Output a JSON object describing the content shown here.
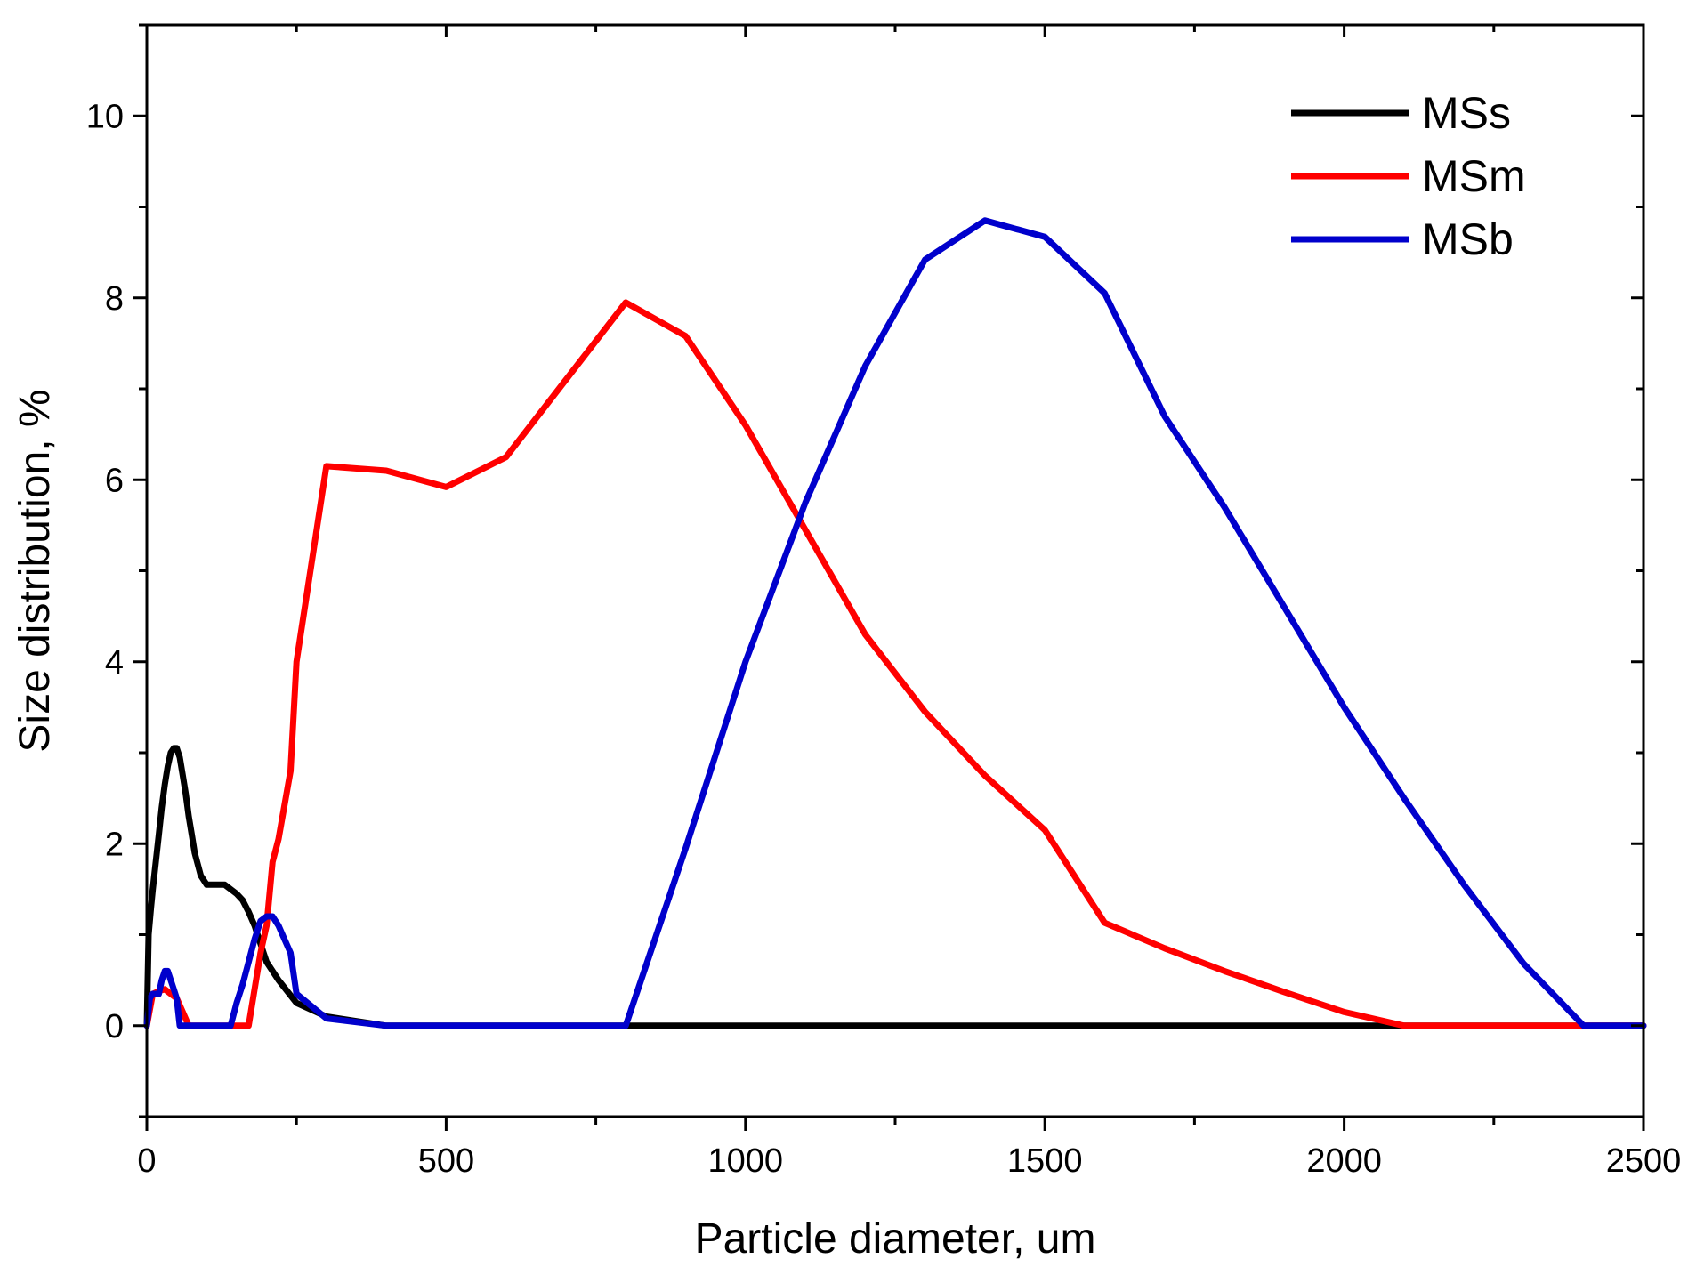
{
  "chart_data": {
    "type": "line",
    "title": "",
    "xlabel": "Particle diameter, um",
    "ylabel": "Size distribution, %",
    "xlim": [
      0,
      2500
    ],
    "ylim": [
      -1,
      11
    ],
    "xticks": [
      0,
      500,
      1000,
      1500,
      2000,
      2500
    ],
    "xtick_labels": [
      "0",
      "500",
      "1000",
      "1500",
      "2000",
      "2500"
    ],
    "yticks": [
      0,
      2,
      4,
      6,
      8,
      10
    ],
    "ytick_labels": [
      "0",
      "2",
      "4",
      "6",
      "8",
      "10"
    ],
    "grid": false,
    "legend_position": "top-right",
    "series": [
      {
        "name": "MSs",
        "color": "#000000",
        "x": [
          0,
          3,
          7,
          10,
          15,
          20,
          25,
          30,
          35,
          40,
          45,
          50,
          55,
          60,
          65,
          70,
          75,
          80,
          90,
          100,
          110,
          120,
          130,
          140,
          150,
          160,
          170,
          180,
          190,
          200,
          220,
          250,
          300,
          400,
          500,
          600,
          700,
          800,
          1000,
          1500,
          2000,
          2500
        ],
        "y": [
          0,
          1.0,
          1.3,
          1.5,
          1.8,
          2.1,
          2.4,
          2.65,
          2.85,
          3.0,
          3.05,
          3.05,
          2.95,
          2.75,
          2.55,
          2.3,
          2.1,
          1.9,
          1.65,
          1.55,
          1.55,
          1.55,
          1.55,
          1.5,
          1.45,
          1.38,
          1.25,
          1.1,
          0.9,
          0.7,
          0.5,
          0.25,
          0.1,
          0.0,
          0,
          0,
          0,
          0,
          0,
          0,
          0,
          0
        ]
      },
      {
        "name": "MSm",
        "color": "#ff0000",
        "x": [
          0,
          10,
          20,
          30,
          40,
          50,
          60,
          70,
          100,
          150,
          170,
          180,
          190,
          200,
          210,
          220,
          240,
          250,
          300,
          400,
          500,
          600,
          700,
          800,
          900,
          1000,
          1100,
          1200,
          1300,
          1400,
          1500,
          1600,
          1700,
          1800,
          1900,
          2000,
          2100,
          2200,
          2300,
          2400,
          2500
        ],
        "y": [
          0,
          0.35,
          0.38,
          0.4,
          0.35,
          0.3,
          0.15,
          0,
          0,
          0,
          0,
          0.4,
          0.8,
          1.1,
          1.8,
          2.05,
          2.8,
          4.0,
          6.15,
          6.1,
          5.92,
          6.25,
          7.1,
          7.95,
          7.58,
          6.6,
          5.45,
          4.3,
          3.45,
          2.75,
          2.15,
          1.13,
          0.85,
          0.6,
          0.37,
          0.15,
          0,
          0,
          0,
          0,
          0
        ]
      },
      {
        "name": "MSb",
        "color": "#0000cc",
        "x": [
          0,
          5,
          10,
          20,
          25,
          30,
          35,
          40,
          45,
          50,
          55,
          60,
          100,
          140,
          150,
          160,
          170,
          180,
          190,
          200,
          210,
          220,
          230,
          240,
          250,
          300,
          400,
          500,
          600,
          700,
          800,
          900,
          1000,
          1100,
          1200,
          1300,
          1400,
          1500,
          1600,
          1700,
          1800,
          1900,
          2000,
          2100,
          2200,
          2300,
          2400,
          2500
        ],
        "y": [
          0,
          0.3,
          0.35,
          0.35,
          0.5,
          0.6,
          0.6,
          0.5,
          0.4,
          0.3,
          0,
          0,
          0,
          0,
          0.25,
          0.45,
          0.7,
          0.95,
          1.15,
          1.2,
          1.2,
          1.1,
          0.95,
          0.8,
          0.35,
          0.08,
          0,
          0,
          0,
          0,
          0,
          1.95,
          4.0,
          5.75,
          7.25,
          8.42,
          8.85,
          8.67,
          8.05,
          6.7,
          5.7,
          4.6,
          3.5,
          2.5,
          1.55,
          0.68,
          0,
          0
        ]
      }
    ]
  }
}
